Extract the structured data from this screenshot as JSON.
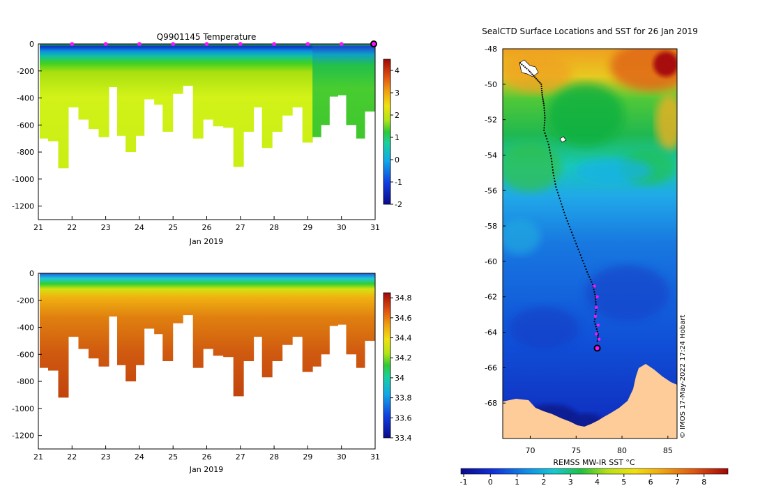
{
  "chart_data": [
    {
      "type": "heatmap",
      "title": "Q9901145  Temperature",
      "xlabel": "Jan 2019",
      "ylabel": "",
      "xlim": [
        21,
        31
      ],
      "ylim": [
        -1300,
        0
      ],
      "xticks": [
        "21",
        "22",
        "23",
        "24",
        "25",
        "26",
        "27",
        "28",
        "29",
        "30",
        "31"
      ],
      "yticks": [
        "0",
        "-200",
        "-400",
        "-600",
        "-800",
        "-1000",
        "-1200"
      ],
      "colorbar": {
        "min": -2,
        "max": 4.5,
        "ticks": [
          "4",
          "3",
          "2",
          "1",
          "0",
          "-1",
          "-2"
        ]
      },
      "surface_markers_day": [
        22,
        23,
        24,
        25,
        26,
        27,
        28,
        29,
        30
      ],
      "current_marker_day": 31,
      "profiles_day": [
        21.1,
        21.35,
        21.65,
        21.95,
        22.25,
        22.55,
        22.85,
        23.15,
        23.4,
        23.65,
        23.95,
        24.2,
        24.5,
        24.75,
        25.05,
        25.35,
        25.65,
        25.95,
        26.25,
        26.55,
        26.85,
        27.15,
        27.45,
        27.7,
        28.0,
        28.3,
        28.6,
        28.9,
        29.2,
        29.45,
        29.7,
        29.95,
        30.2,
        30.5,
        30.75
      ],
      "profiles_max_depth": [
        700,
        720,
        920,
        470,
        560,
        630,
        690,
        320,
        680,
        800,
        680,
        410,
        450,
        650,
        370,
        310,
        700,
        560,
        610,
        620,
        910,
        650,
        470,
        770,
        650,
        530,
        470,
        730,
        690,
        600,
        390,
        380,
        600,
        700,
        500
      ]
    },
    {
      "type": "heatmap",
      "title": "",
      "xlabel": "Jan 2019",
      "ylabel": "",
      "xlim": [
        21,
        31
      ],
      "ylim": [
        -1300,
        0
      ],
      "xticks": [
        "21",
        "22",
        "23",
        "24",
        "25",
        "26",
        "27",
        "28",
        "29",
        "30",
        "31"
      ],
      "yticks": [
        "0",
        "-200",
        "-400",
        "-600",
        "-800",
        "-1000",
        "-1200"
      ],
      "colorbar": {
        "min": 33.4,
        "max": 34.85,
        "ticks": [
          "34.8",
          "34.6",
          "34.4",
          "34.2",
          "34",
          "33.8",
          "33.6",
          "33.4"
        ]
      }
    },
    {
      "type": "heatmap",
      "title": "SealCTD Surface Locations and SST for 26 Jan 2019",
      "xlabel": "",
      "ylabel": "",
      "xlim": [
        67,
        86
      ],
      "ylim": [
        -70,
        -48
      ],
      "xticks": [
        "70",
        "75",
        "80",
        "85"
      ],
      "yticks": [
        "-48",
        "-50",
        "-52",
        "-54",
        "-56",
        "-58",
        "-60",
        "-62",
        "-64",
        "-66",
        "-68"
      ],
      "colorbar": {
        "label": "REMSS MW-IR SST °C",
        "min": -1,
        "max": 9,
        "ticks": [
          "-1",
          "0",
          "1",
          "2",
          "3",
          "4",
          "5",
          "6",
          "7",
          "8"
        ]
      },
      "track": [
        [
          68.9,
          -48.8
        ],
        [
          69.8,
          -49.2
        ],
        [
          70.5,
          -49.6
        ],
        [
          71.2,
          -50.0
        ],
        [
          71.3,
          -50.6
        ],
        [
          71.5,
          -51.2
        ],
        [
          71.6,
          -51.9
        ],
        [
          71.5,
          -52.6
        ],
        [
          72.0,
          -53.4
        ],
        [
          72.3,
          -54.2
        ],
        [
          72.5,
          -55.0
        ],
        [
          72.8,
          -55.8
        ],
        [
          73.3,
          -56.6
        ],
        [
          73.8,
          -57.4
        ],
        [
          74.4,
          -58.2
        ],
        [
          75.0,
          -59.0
        ],
        [
          75.6,
          -59.8
        ],
        [
          76.2,
          -60.6
        ],
        [
          76.8,
          -61.3
        ],
        [
          77.1,
          -62.0
        ],
        [
          77.2,
          -62.7
        ],
        [
          77.0,
          -63.4
        ],
        [
          77.4,
          -64.1
        ],
        [
          77.3,
          -64.6
        ]
      ],
      "recent_positions": [
        [
          77.0,
          -61.4
        ],
        [
          77.3,
          -62.0
        ],
        [
          77.2,
          -62.6
        ],
        [
          77.1,
          -63.1
        ],
        [
          77.4,
          -63.6
        ],
        [
          77.2,
          -64.1
        ],
        [
          77.5,
          -64.4
        ]
      ],
      "current_position": [
        77.3,
        -64.9
      ],
      "imos_stamp": "© IMOS 17-May-2022 17:24 Hobart"
    }
  ]
}
